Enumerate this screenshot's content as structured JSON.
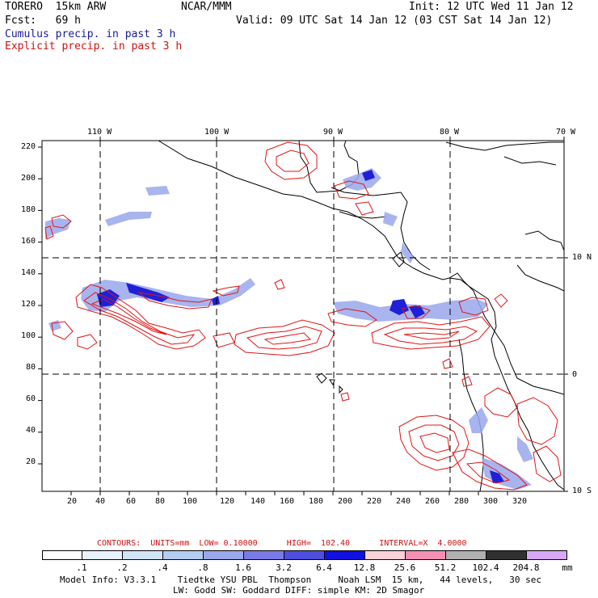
{
  "header": {
    "model": "TORERO  15km ARW",
    "org": "NCAR/MMM",
    "init": "Init: 12 UTC Wed 11 Jan 12",
    "fcst": "Fcst:   69 h",
    "valid": "Valid: 09 UTC Sat 14 Jan 12 (03 CST Sat 14 Jan 12)",
    "field1": "Cumulus precip. in past 3 h",
    "field2": "Explicit precip. in past 3 h"
  },
  "colors": {
    "field1": "#1a1a9a",
    "field2": "#d01010",
    "contour": "#e01515"
  },
  "map": {
    "lon_labels": [
      "110 W",
      "100 W",
      "90 W",
      "80 W",
      "70 W"
    ],
    "lat_labels": [
      "10 N",
      "0",
      "10 S"
    ],
    "y_ticks": [
      "220",
      "200",
      "180",
      "160",
      "140",
      "120",
      "100",
      "80",
      "60",
      "40",
      "20"
    ],
    "x_ticks": [
      "20",
      "40",
      "60",
      "80",
      "100",
      "120",
      "140",
      "160",
      "180",
      "200",
      "220",
      "240",
      "260",
      "280",
      "300",
      "320"
    ]
  },
  "contours_note": "CONTOURS:  UNITS=mm  LOW= 0.10000      HIGH=  102.40      INTERVAL=X  4.0000",
  "colorbar": {
    "labels": [
      ".1",
      ".2",
      ".4",
      ".8",
      "1.6",
      "3.2",
      "6.4",
      "12.8",
      "25.6",
      "51.2",
      "102.4",
      "204.8"
    ],
    "unit": "mm",
    "colors": [
      "#ffffff",
      "#e8f2fc",
      "#d2e4f8",
      "#b4cef2",
      "#9aa8ec",
      "#7a7ae8",
      "#4e4ee0",
      "#1010e0",
      "#fbd2d8",
      "#f490b4",
      "#b0b0b0",
      "#303030",
      "#d8a8f4"
    ]
  },
  "footer": {
    "line1": "Model Info: V3.3.1    Tiedtke YSU PBL  Thompson     Noah LSM  15 km,   44 levels,   30 sec",
    "line2": "LW: Godd SW: Goddard DIFF: simple KM: 2D Smagor"
  }
}
